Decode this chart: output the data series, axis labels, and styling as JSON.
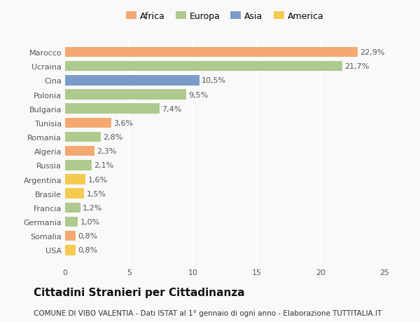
{
  "countries": [
    "Marocco",
    "Ucraina",
    "Cina",
    "Polonia",
    "Bulgaria",
    "Tunisia",
    "Romania",
    "Algeria",
    "Russia",
    "Argentina",
    "Brasile",
    "Francia",
    "Germania",
    "Somalia",
    "USA"
  ],
  "values": [
    22.9,
    21.7,
    10.5,
    9.5,
    7.4,
    3.6,
    2.8,
    2.3,
    2.1,
    1.6,
    1.5,
    1.2,
    1.0,
    0.8,
    0.8
  ],
  "labels": [
    "22,9%",
    "21,7%",
    "10,5%",
    "9,5%",
    "7,4%",
    "3,6%",
    "2,8%",
    "2,3%",
    "2,1%",
    "1,6%",
    "1,5%",
    "1,2%",
    "1,0%",
    "0,8%",
    "0,8%"
  ],
  "colors": [
    "#F4A970",
    "#AFCA8E",
    "#7B9CC8",
    "#AFCA8E",
    "#AFCA8E",
    "#F4A970",
    "#AFCA8E",
    "#F4A970",
    "#AFCA8E",
    "#F5CA50",
    "#F5CA50",
    "#AFCA8E",
    "#AFCA8E",
    "#F4A970",
    "#F5CA50"
  ],
  "legend_labels": [
    "Africa",
    "Europa",
    "Asia",
    "America"
  ],
  "legend_colors": [
    "#F4A970",
    "#AFCA8E",
    "#7B9CC8",
    "#F5CA50"
  ],
  "title": "Cittadini Stranieri per Cittadinanza",
  "subtitle": "COMUNE DI VIBO VALENTIA - Dati ISTAT al 1° gennaio di ogni anno - Elaborazione TUTTITALIA.IT",
  "xlim": [
    0,
    25
  ],
  "xticks": [
    0,
    5,
    10,
    15,
    20,
    25
  ],
  "background_color": "#f9f9f9",
  "grid_color": "#ffffff",
  "title_fontsize": 11,
  "subtitle_fontsize": 7.5,
  "label_fontsize": 8,
  "tick_fontsize": 8,
  "legend_fontsize": 9,
  "bar_height": 0.72
}
